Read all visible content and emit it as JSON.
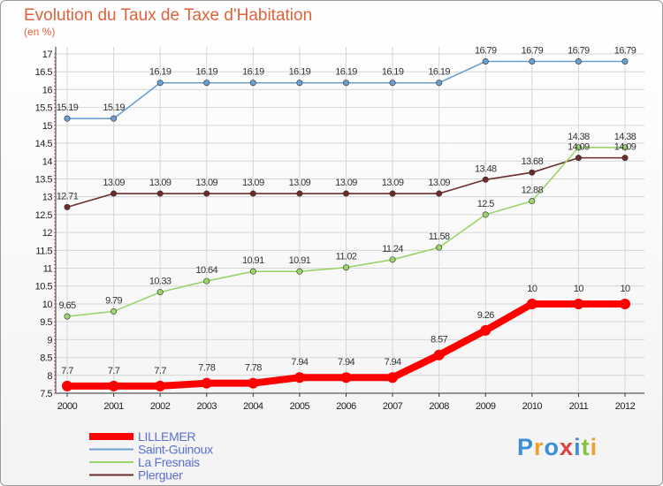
{
  "chart_data": {
    "type": "line",
    "title": "Evolution du Taux de Taxe d'Habitation",
    "ylabel": "(en %)",
    "xlabel": "",
    "x": [
      "2000",
      "2001",
      "2002",
      "2003",
      "2004",
      "2005",
      "2006",
      "2007",
      "2008",
      "2009",
      "2010",
      "2011",
      "2012"
    ],
    "ylim": [
      7.5,
      17
    ],
    "yticks": [
      "7.5",
      "8",
      "8.5",
      "9",
      "9.5",
      "10",
      "10.5",
      "11",
      "11.5",
      "12",
      "12.5",
      "13",
      "13.5",
      "14",
      "14.5",
      "15",
      "15.5",
      "16",
      "16.5",
      "17"
    ],
    "grid": true,
    "legend": "bottom-left",
    "series": [
      {
        "name": "LILLEMER",
        "color": "#ff0000",
        "values": [
          7.7,
          7.7,
          7.7,
          7.78,
          7.78,
          7.94,
          7.94,
          7.94,
          8.57,
          9.26,
          10,
          10,
          10
        ],
        "labels": [
          "7.7",
          "7.7",
          "7.7",
          "7.78",
          "7.78",
          "7.94",
          "7.94",
          "7.94",
          "8.57",
          "9.26",
          "10",
          "10",
          "10"
        ]
      },
      {
        "name": "Saint-Guinoux",
        "color": "#6a9fd0",
        "values": [
          15.19,
          15.19,
          16.19,
          16.19,
          16.19,
          16.19,
          16.19,
          16.19,
          16.19,
          16.79,
          16.79,
          16.79,
          16.79
        ],
        "labels": [
          "15.19",
          "15.19",
          "16.19",
          "16.19",
          "16.19",
          "16.19",
          "16.19",
          "16.19",
          "16.19",
          "16.79",
          "16.79",
          "16.79",
          "16.79"
        ]
      },
      {
        "name": "La Fresnais",
        "color": "#9ad46a",
        "values": [
          9.65,
          9.79,
          10.33,
          10.64,
          10.91,
          10.91,
          11.02,
          11.24,
          11.58,
          12.5,
          12.88,
          14.38,
          14.38
        ],
        "labels": [
          "9.65",
          "9.79",
          "10.33",
          "10.64",
          "10.91",
          "10.91",
          "11.02",
          "11.24",
          "11.58",
          "12.5",
          "12.88",
          "14.38",
          "14.38"
        ]
      },
      {
        "name": "Plerguer",
        "color": "#6b2c2c",
        "values": [
          12.71,
          13.09,
          13.09,
          13.09,
          13.09,
          13.09,
          13.09,
          13.09,
          13.09,
          13.48,
          13.68,
          14.09,
          14.09
        ],
        "labels": [
          "12.71",
          "13.09",
          "13.09",
          "13.09",
          "13.09",
          "13.09",
          "13.09",
          "13.09",
          "13.09",
          "13.48",
          "13.68",
          "14.09",
          "14.09"
        ]
      }
    ]
  },
  "logo": {
    "text": "Proxiti"
  }
}
